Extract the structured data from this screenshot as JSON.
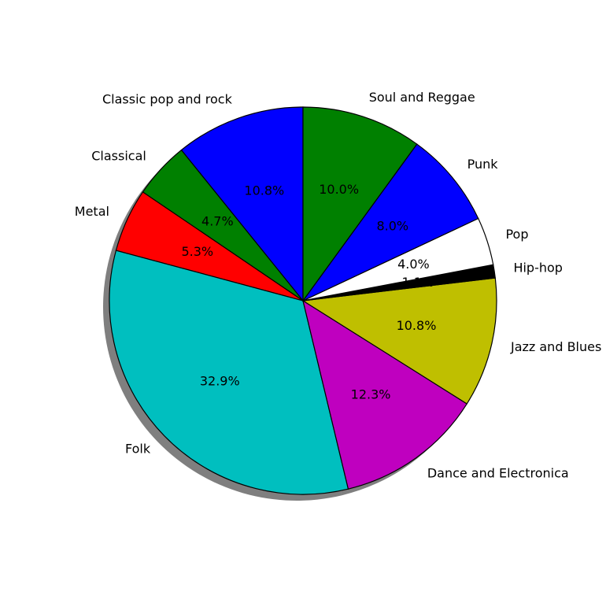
{
  "chart_data": {
    "type": "pie",
    "title": "",
    "start_angle_deg": 90,
    "direction": "counterclockwise",
    "shadow": true,
    "slices": [
      {
        "label": "Classic pop and rock",
        "value": 10.8,
        "pct_label": "10.8%",
        "color": "#0000ff"
      },
      {
        "label": "Classical",
        "value": 4.7,
        "pct_label": "4.7%",
        "color": "#008000"
      },
      {
        "label": "Metal",
        "value": 5.3,
        "pct_label": "5.3%",
        "color": "#ff0000"
      },
      {
        "label": "Folk",
        "value": 32.9,
        "pct_label": "32.9%",
        "color": "#00bfbf"
      },
      {
        "label": "Dance and Electronica",
        "value": 12.3,
        "pct_label": "12.3%",
        "color": "#bf00bf"
      },
      {
        "label": "Jazz and Blues",
        "value": 10.8,
        "pct_label": "10.8%",
        "color": "#bfbf00"
      },
      {
        "label": "Hip-hop",
        "value": 1.1,
        "pct_label": "1.1%",
        "color": "#000000"
      },
      {
        "label": "Pop",
        "value": 4.0,
        "pct_label": "4.0%",
        "color": "#ffffff"
      },
      {
        "label": "Punk",
        "value": 8.0,
        "pct_label": "8.0%",
        "color": "#0000ff"
      },
      {
        "label": "Soul and Reggae",
        "value": 10.0,
        "pct_label": "10.0%",
        "color": "#008000"
      }
    ]
  }
}
